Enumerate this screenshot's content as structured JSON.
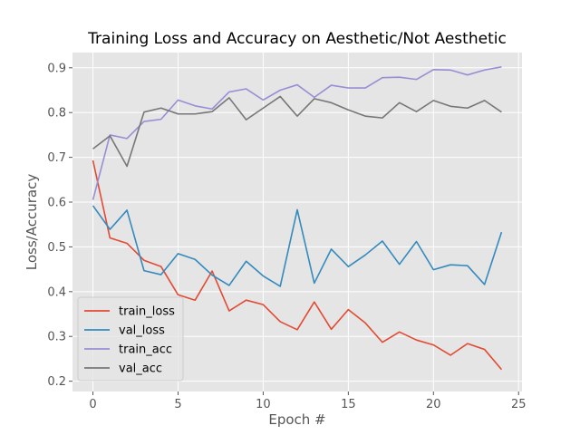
{
  "chart_data": {
    "type": "line",
    "title": "Training Loss and Accuracy on Aesthetic/Not Aesthetic",
    "xlabel": "Epoch #",
    "ylabel": "Loss/Accuracy",
    "xlim": [
      -1.2,
      25.2
    ],
    "ylim": [
      0.177,
      0.934
    ],
    "xticks": [
      0,
      5,
      10,
      15,
      20,
      25
    ],
    "yticks": [
      0.2,
      0.3,
      0.4,
      0.5,
      0.6,
      0.7,
      0.8,
      0.9
    ],
    "grid": true,
    "legend_position": "lower-left",
    "x": [
      0,
      1,
      2,
      3,
      4,
      5,
      6,
      7,
      8,
      9,
      10,
      11,
      12,
      13,
      14,
      15,
      16,
      17,
      18,
      19,
      20,
      21,
      22,
      23,
      24
    ],
    "series": [
      {
        "name": "train_loss",
        "color": "#E24A33",
        "values": [
          0.693,
          0.52,
          0.508,
          0.47,
          0.456,
          0.393,
          0.381,
          0.446,
          0.357,
          0.381,
          0.371,
          0.333,
          0.315,
          0.377,
          0.316,
          0.36,
          0.33,
          0.287,
          0.31,
          0.292,
          0.281,
          0.258,
          0.284,
          0.271,
          0.226
        ]
      },
      {
        "name": "val_loss",
        "color": "#348ABD",
        "values": [
          0.592,
          0.539,
          0.582,
          0.447,
          0.438,
          0.485,
          0.472,
          0.437,
          0.414,
          0.468,
          0.435,
          0.412,
          0.583,
          0.419,
          0.495,
          0.456,
          0.482,
          0.513,
          0.461,
          0.512,
          0.449,
          0.46,
          0.458,
          0.416,
          0.533
        ]
      },
      {
        "name": "train_acc",
        "color": "#988ED5",
        "values": [
          0.605,
          0.75,
          0.742,
          0.78,
          0.785,
          0.828,
          0.815,
          0.808,
          0.846,
          0.853,
          0.828,
          0.85,
          0.862,
          0.834,
          0.861,
          0.855,
          0.855,
          0.878,
          0.879,
          0.874,
          0.896,
          0.895,
          0.884,
          0.895,
          0.902
        ]
      },
      {
        "name": "val_acc",
        "color": "#777777",
        "values": [
          0.719,
          0.748,
          0.68,
          0.801,
          0.81,
          0.797,
          0.797,
          0.802,
          0.833,
          0.784,
          0.81,
          0.836,
          0.792,
          0.831,
          0.822,
          0.806,
          0.792,
          0.788,
          0.822,
          0.802,
          0.827,
          0.814,
          0.81,
          0.827,
          0.801
        ]
      }
    ]
  }
}
